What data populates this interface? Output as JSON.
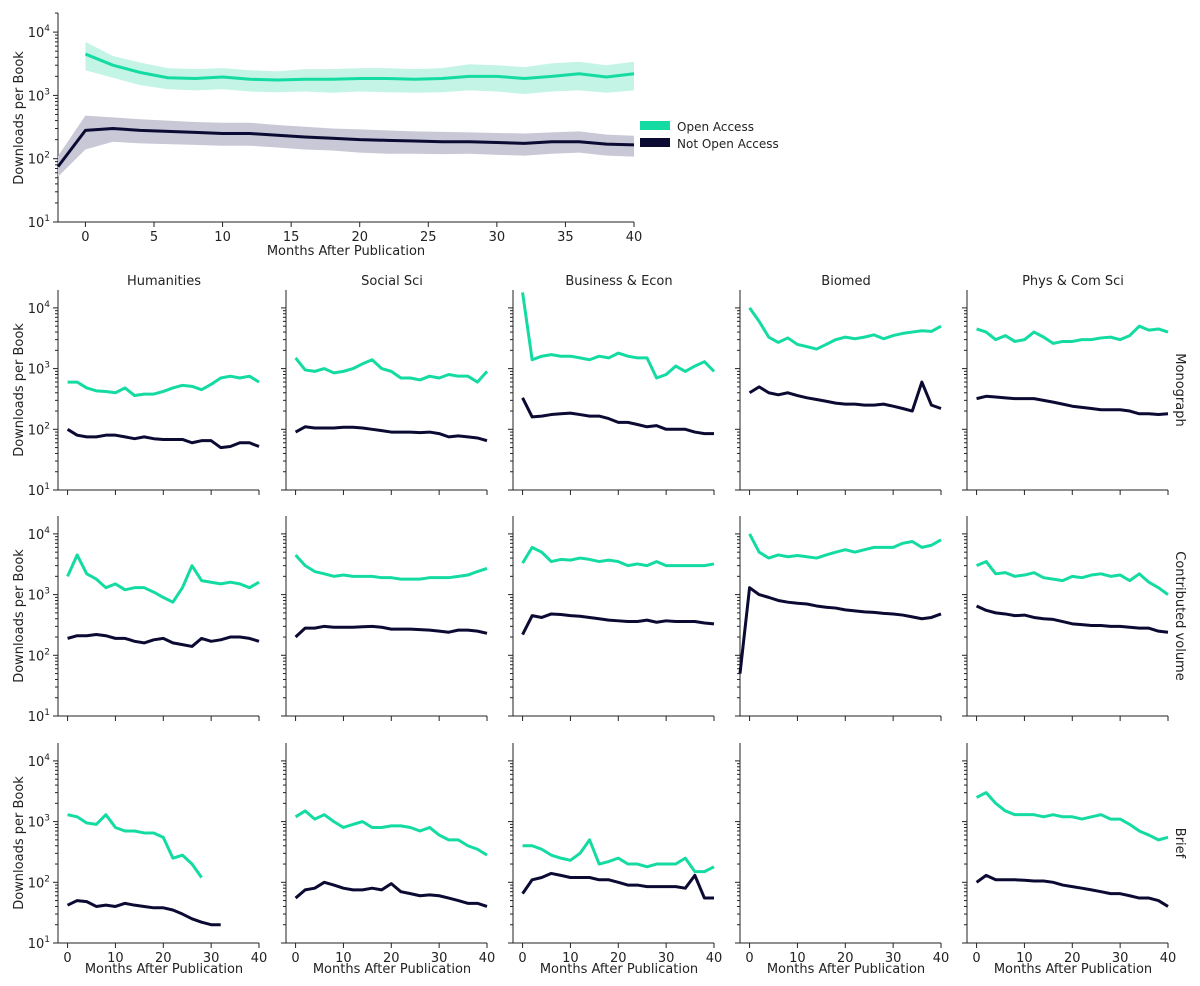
{
  "colors": {
    "open_access": "#14dba1",
    "not_open_access": "#0b0a33",
    "oa_band": "#c4f4e6",
    "noa_band": "#c9c8d6"
  },
  "chart_data": [
    {
      "type": "line",
      "id": "overall",
      "xlabel": "Months After Publication",
      "ylabel": "Downloads per Book",
      "xlim": [
        -2,
        40
      ],
      "ylim_log10": [
        1,
        4.3
      ],
      "xticks": [
        0,
        5,
        10,
        15,
        20,
        25,
        30,
        35,
        40
      ],
      "yticks_exp": [
        1,
        2,
        3,
        4
      ],
      "legend": {
        "placement": "right",
        "entries": [
          "Open Access",
          "Not Open Access"
        ]
      },
      "series": [
        {
          "name": "Open Access",
          "x_start": 0,
          "step": 2,
          "values": [
            4500,
            3000,
            2300,
            1900,
            1850,
            1950,
            1800,
            1750,
            1800,
            1800,
            1850,
            1850,
            1800,
            1850,
            2000,
            2000,
            1850,
            2000,
            2200,
            1950,
            2200
          ],
          "lower": [
            2500,
            1900,
            1450,
            1250,
            1200,
            1250,
            1150,
            1120,
            1150,
            1100,
            1150,
            1120,
            1100,
            1120,
            1200,
            1150,
            1050,
            1150,
            1200,
            1100,
            1200
          ],
          "upper": [
            7000,
            4200,
            3300,
            2700,
            2600,
            2700,
            2500,
            2400,
            2600,
            2600,
            2700,
            2700,
            2600,
            2700,
            3100,
            3000,
            2800,
            3200,
            3400,
            3000,
            3400
          ]
        },
        {
          "name": "Not Open Access",
          "x_start": -2,
          "step": 2,
          "values": [
            75,
            280,
            300,
            280,
            270,
            260,
            250,
            250,
            235,
            220,
            210,
            200,
            195,
            190,
            185,
            185,
            180,
            175,
            185,
            185,
            170,
            165
          ],
          "lower": [
            52,
            140,
            185,
            175,
            170,
            165,
            160,
            160,
            150,
            140,
            135,
            125,
            120,
            120,
            118,
            120,
            115,
            112,
            120,
            125,
            112,
            108
          ],
          "upper": [
            110,
            480,
            450,
            420,
            400,
            380,
            370,
            370,
            340,
            320,
            300,
            290,
            280,
            270,
            265,
            260,
            255,
            250,
            260,
            270,
            240,
            230
          ]
        }
      ]
    },
    {
      "type": "line",
      "id": "facets",
      "xlabel": "Months After Publication",
      "ylabel": "Downloads per Book",
      "xlim": [
        -2,
        40
      ],
      "ylim_log10": [
        1,
        4.3
      ],
      "xticks": [
        0,
        10,
        20,
        30,
        40
      ],
      "yticks_exp": [
        1,
        2,
        3,
        4
      ],
      "columns": [
        "Humanities",
        "Social Sci",
        "Business & Econ",
        "Biomed",
        "Phys & Com Sci"
      ],
      "rows": [
        "Monograph",
        "Contributed volume",
        "Brief"
      ],
      "panels": [
        [
          {
            "oa": {
              "x_start": 0,
              "values": [
                600,
                600,
                480,
                430,
                420,
                400,
                480,
                360,
                380,
                380,
                420,
                480,
                530,
                510,
                450,
                550,
                700,
                750,
                700,
                750,
                600
              ]
            },
            "noa": {
              "x_start": 0,
              "values": [
                100,
                80,
                75,
                75,
                80,
                80,
                75,
                70,
                75,
                70,
                68,
                68,
                68,
                60,
                65,
                65,
                50,
                52,
                60,
                60,
                52
              ]
            }
          },
          {
            "oa": {
              "x_start": 0,
              "values": [
                1500,
                950,
                900,
                1000,
                850,
                900,
                1000,
                1200,
                1400,
                1000,
                900,
                700,
                700,
                650,
                750,
                700,
                800,
                750,
                750,
                600,
                900
              ]
            },
            "noa": {
              "x_start": 0,
              "values": [
                90,
                110,
                105,
                105,
                105,
                108,
                108,
                105,
                100,
                95,
                90,
                90,
                90,
                88,
                90,
                85,
                75,
                78,
                75,
                72,
                65
              ]
            }
          },
          {
            "oa": {
              "x_start": 0,
              "values": [
                18000,
                1400,
                1600,
                1700,
                1600,
                1600,
                1500,
                1400,
                1600,
                1500,
                1800,
                1600,
                1500,
                1500,
                700,
                800,
                1100,
                900,
                1100,
                1300,
                900
              ]
            },
            "noa": {
              "x_start": 0,
              "values": [
                330,
                160,
                165,
                175,
                180,
                185,
                175,
                165,
                165,
                150,
                130,
                130,
                120,
                110,
                115,
                100,
                100,
                100,
                90,
                85,
                85
              ]
            }
          },
          {
            "oa": {
              "x_start": 0,
              "values": [
                10000,
                6000,
                3300,
                2700,
                3200,
                2500,
                2300,
                2100,
                2500,
                3000,
                3300,
                3100,
                3300,
                3600,
                3100,
                3500,
                3800,
                4000,
                4200,
                4100,
                5000
              ]
            },
            "noa": {
              "x_start": 0,
              "values": [
                400,
                500,
                400,
                370,
                400,
                360,
                330,
                310,
                290,
                270,
                260,
                260,
                250,
                250,
                260,
                240,
                220,
                200,
                600,
                250,
                220
              ]
            }
          },
          {
            "oa": {
              "x_start": 0,
              "values": [
                4500,
                4000,
                3000,
                3500,
                2800,
                3000,
                4000,
                3300,
                2600,
                2800,
                2800,
                3000,
                3000,
                3200,
                3300,
                3000,
                3500,
                5000,
                4300,
                4500,
                4000
              ]
            },
            "noa": {
              "x_start": 0,
              "values": [
                320,
                350,
                340,
                330,
                320,
                320,
                320,
                300,
                280,
                260,
                240,
                230,
                220,
                210,
                210,
                210,
                200,
                180,
                180,
                175,
                180
              ]
            }
          }
        ],
        [
          {
            "oa": {
              "x_start": 0,
              "values": [
                2000,
                4500,
                2200,
                1800,
                1300,
                1500,
                1200,
                1300,
                1300,
                1100,
                900,
                750,
                1300,
                3000,
                1700,
                1600,
                1500,
                1600,
                1500,
                1300,
                1600
              ]
            },
            "noa": {
              "x_start": 0,
              "values": [
                190,
                210,
                210,
                220,
                210,
                190,
                190,
                170,
                160,
                180,
                190,
                160,
                150,
                140,
                190,
                170,
                180,
                200,
                200,
                190,
                170
              ]
            }
          },
          {
            "oa": {
              "x_start": 0,
              "values": [
                4500,
                3000,
                2400,
                2200,
                2000,
                2100,
                2000,
                2000,
                2000,
                1900,
                1900,
                1800,
                1800,
                1800,
                1900,
                1900,
                1900,
                2000,
                2100,
                2400,
                2700
              ]
            },
            "noa": {
              "x_start": 0,
              "values": [
                200,
                280,
                280,
                300,
                290,
                290,
                290,
                295,
                300,
                290,
                270,
                270,
                270,
                265,
                260,
                250,
                240,
                260,
                260,
                250,
                230
              ]
            }
          },
          {
            "oa": {
              "x_start": 0,
              "values": [
                3300,
                6000,
                5000,
                3500,
                3800,
                3700,
                4000,
                3800,
                3500,
                3700,
                3500,
                3000,
                3200,
                3000,
                3500,
                3000,
                3000,
                3000,
                3000,
                3000,
                3200
              ]
            },
            "noa": {
              "x_start": 0,
              "values": [
                220,
                450,
                420,
                480,
                470,
                450,
                440,
                420,
                400,
                380,
                370,
                360,
                360,
                380,
                350,
                370,
                360,
                360,
                360,
                340,
                330
              ]
            }
          },
          {
            "oa": {
              "x_start": 0,
              "values": [
                10000,
                5000,
                4000,
                4500,
                4200,
                4400,
                4200,
                4000,
                4500,
                5000,
                5500,
                5000,
                5500,
                6000,
                6000,
                6000,
                7000,
                7500,
                6000,
                6500,
                8000
              ]
            },
            "noa": {
              "x_start": -2,
              "values": [
                50,
                1300,
                1000,
                900,
                800,
                750,
                720,
                700,
                650,
                620,
                600,
                560,
                540,
                520,
                510,
                490,
                480,
                460,
                430,
                400,
                420,
                480
              ]
            }
          },
          {
            "oa": {
              "x_start": 0,
              "values": [
                3000,
                3500,
                2200,
                2300,
                2000,
                2100,
                2300,
                1900,
                1800,
                1700,
                2000,
                1900,
                2100,
                2200,
                2000,
                2100,
                1700,
                2200,
                1600,
                1300,
                1000
              ]
            },
            "noa": {
              "x_start": 0,
              "values": [
                650,
                550,
                500,
                480,
                450,
                460,
                420,
                400,
                390,
                360,
                330,
                320,
                310,
                310,
                300,
                300,
                290,
                280,
                280,
                250,
                240
              ]
            }
          }
        ],
        [
          {
            "oa": {
              "x_start": 0,
              "values": [
                1300,
                1200,
                950,
                900,
                1300,
                800,
                700,
                700,
                650,
                650,
                550,
                250,
                280,
                200,
                120
              ]
            },
            "noa": {
              "x_start": 0,
              "values": [
                42,
                50,
                48,
                40,
                42,
                40,
                45,
                42,
                40,
                38,
                38,
                35,
                30,
                25,
                22,
                20,
                20
              ]
            }
          },
          {
            "oa": {
              "x_start": 0,
              "values": [
                1200,
                1500,
                1100,
                1300,
                1000,
                800,
                900,
                1000,
                800,
                800,
                850,
                850,
                800,
                700,
                800,
                600,
                500,
                500,
                400,
                350,
                280
              ]
            },
            "noa": {
              "x_start": 0,
              "values": [
                55,
                75,
                80,
                100,
                90,
                80,
                75,
                75,
                80,
                75,
                95,
                70,
                65,
                60,
                62,
                60,
                55,
                50,
                45,
                45,
                40
              ]
            }
          },
          {
            "oa": {
              "x_start": 0,
              "values": [
                400,
                400,
                350,
                280,
                250,
                230,
                300,
                500,
                200,
                220,
                250,
                200,
                200,
                180,
                200,
                200,
                200,
                250,
                150,
                150,
                180
              ]
            },
            "noa": {
              "x_start": 0,
              "values": [
                65,
                110,
                120,
                140,
                130,
                120,
                120,
                120,
                110,
                110,
                100,
                90,
                90,
                85,
                85,
                85,
                85,
                80,
                130,
                55,
                55
              ]
            }
          },
          null,
          {
            "oa": {
              "x_start": 0,
              "values": [
                2500,
                3000,
                2000,
                1500,
                1300,
                1300,
                1300,
                1200,
                1300,
                1200,
                1200,
                1100,
                1200,
                1300,
                1100,
                1100,
                900,
                700,
                600,
                500,
                550
              ]
            },
            "noa": {
              "x_start": 0,
              "values": [
                100,
                130,
                110,
                110,
                110,
                108,
                105,
                105,
                100,
                90,
                85,
                80,
                75,
                70,
                65,
                65,
                60,
                55,
                55,
                50,
                40
              ]
            }
          }
        ]
      ]
    }
  ]
}
